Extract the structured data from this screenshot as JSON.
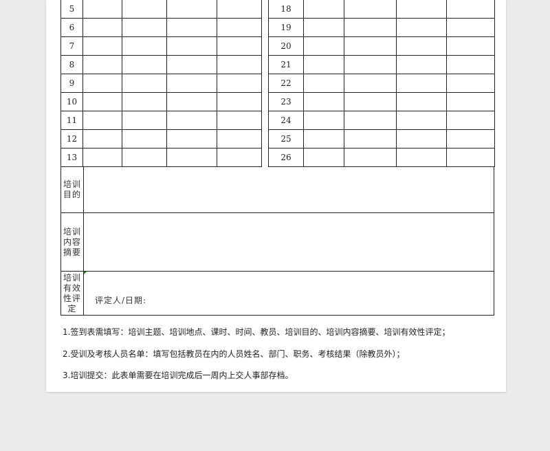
{
  "left_rows": [
    "5",
    "6",
    "7",
    "8",
    "9",
    "10",
    "11",
    "12",
    "13"
  ],
  "right_rows": [
    "18",
    "19",
    "20",
    "21",
    "22",
    "23",
    "24",
    "25",
    "26"
  ],
  "sections": {
    "purpose_label": "培训目的",
    "summary_label": "培训内容摘要",
    "evaluation_label": "培训有效性评定",
    "evaluator_label": "评定人/日期:"
  },
  "notes": [
    "1.签到表需填写：培训主题、培训地点、课时、时间、教员、培训目的、培训内容摘要、培训有效性评定；",
    "2.受训及考核人员名单：填写包括教员在内的人员姓名、部门、职务、考核结果（除教员外）；",
    "3.培训提交：此表单需要在培训完成后一周内上交人事部存档。"
  ]
}
